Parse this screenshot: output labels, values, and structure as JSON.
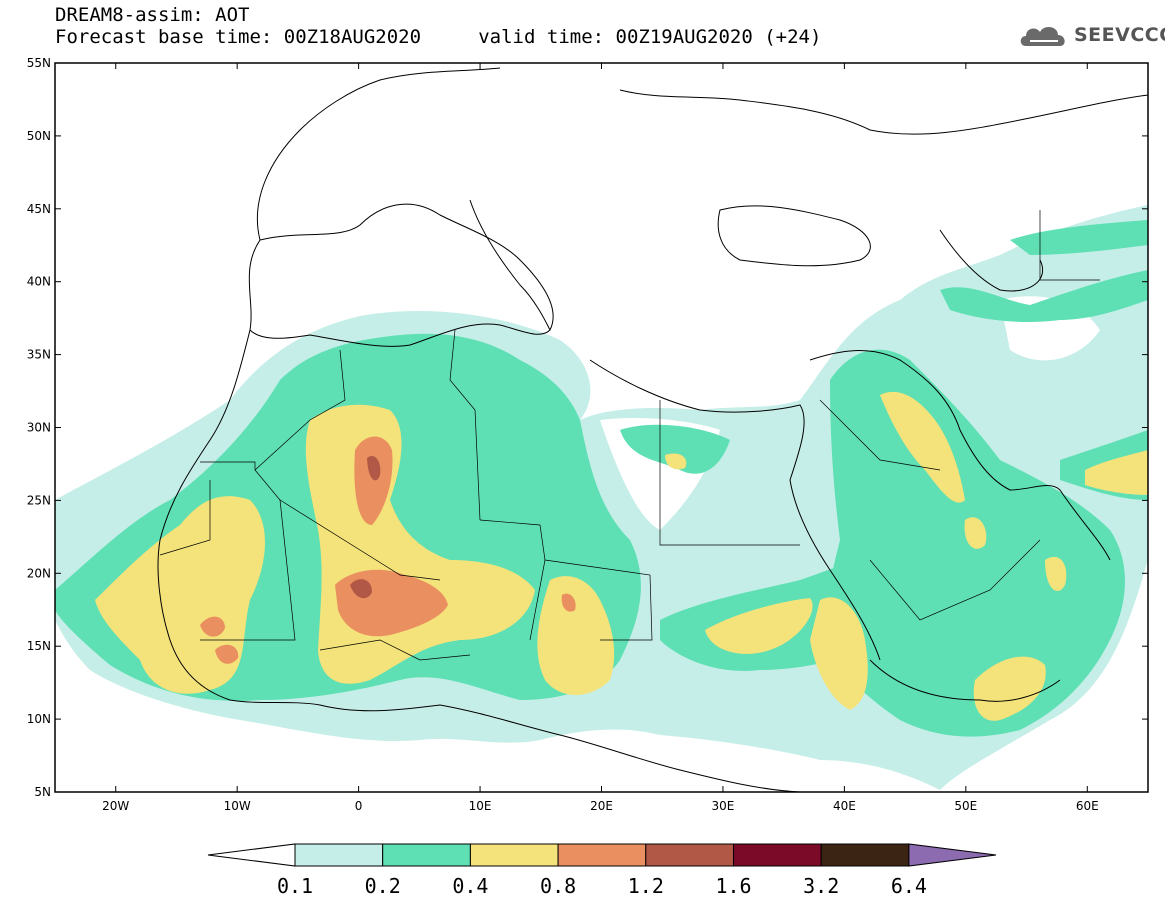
{
  "header": {
    "title": "DREAM8-assim: AOT",
    "subtitle": "Forecast base time: 00Z18AUG2020     valid time: 00Z19AUG2020 (+24)",
    "logo_text": "SEEVCCC",
    "logo_icon": "cloud-icon"
  },
  "map": {
    "lon_range": [
      -25,
      65
    ],
    "lat_range": [
      5,
      55
    ],
    "lon_ticks": [
      {
        "value": -20,
        "label": "20W"
      },
      {
        "value": -10,
        "label": "10W"
      },
      {
        "value": 0,
        "label": "0"
      },
      {
        "value": 10,
        "label": "10E"
      },
      {
        "value": 20,
        "label": "20E"
      },
      {
        "value": 30,
        "label": "30E"
      },
      {
        "value": 40,
        "label": "40E"
      },
      {
        "value": 50,
        "label": "50E"
      },
      {
        "value": 60,
        "label": "60E"
      }
    ],
    "lat_ticks": [
      {
        "value": 55,
        "label": "55N"
      },
      {
        "value": 50,
        "label": "50N"
      },
      {
        "value": 45,
        "label": "45N"
      },
      {
        "value": 40,
        "label": "40N"
      },
      {
        "value": 35,
        "label": "35N"
      },
      {
        "value": 30,
        "label": "30N"
      },
      {
        "value": 25,
        "label": "25N"
      },
      {
        "value": 20,
        "label": "20N"
      },
      {
        "value": 15,
        "label": "15N"
      },
      {
        "value": 10,
        "label": "10N"
      },
      {
        "value": 5,
        "label": "5N"
      }
    ]
  },
  "colorbar": {
    "under_color": "#ffffff",
    "over_color": "#8c6bb1",
    "bins": [
      {
        "color": "#c6eee8"
      },
      {
        "color": "#5ee0b4"
      },
      {
        "color": "#f4e27a"
      },
      {
        "color": "#ea9060"
      },
      {
        "color": "#b25846"
      },
      {
        "color": "#7a0a28"
      },
      {
        "color": "#3c2414"
      }
    ],
    "labels": [
      "0.1",
      "0.2",
      "0.4",
      "0.8",
      "1.2",
      "1.6",
      "3.2",
      "6.4"
    ]
  }
}
